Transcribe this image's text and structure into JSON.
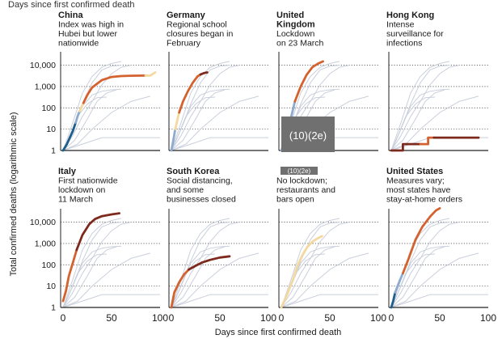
{
  "header": {
    "text": "Days since first confirmed death"
  },
  "ylabel": "Total confirmed deaths (logarithmic scale)",
  "xlabel": "Days since first confirmed death",
  "redactions": {
    "big": "(10)(2e)",
    "small": "(10)(2e)"
  },
  "chart_data": {
    "type": "line",
    "y_scale": "log",
    "ylim": [
      1,
      30000
    ],
    "xlim": [
      0,
      100
    ],
    "y_ticks": [
      {
        "v": 1,
        "label": "1"
      },
      {
        "v": 10,
        "label": "10"
      },
      {
        "v": 100,
        "label": "100"
      },
      {
        "v": 1000,
        "label": "1,000"
      },
      {
        "v": 10000,
        "label": "10,000"
      }
    ],
    "x_ticks": [
      {
        "v": 0,
        "label": "0"
      },
      {
        "v": 50,
        "label": "50"
      },
      {
        "v": 100,
        "label": "100"
      }
    ],
    "colors": {
      "grey": "#c9cfdb",
      "dark_blue": "#1d5e8c",
      "light_blue": "#8eabcf",
      "cream": "#f3d9a0",
      "orange": "#d4622e",
      "dark_red": "#7d2a1c"
    },
    "background_series": [
      [
        [
          0,
          1
        ],
        [
          10,
          20
        ],
        [
          20,
          500
        ],
        [
          30,
          3000
        ],
        [
          40,
          8000
        ],
        [
          50,
          12000
        ],
        [
          60,
          15000
        ]
      ],
      [
        [
          0,
          1
        ],
        [
          10,
          10
        ],
        [
          20,
          150
        ],
        [
          30,
          1500
        ],
        [
          40,
          6000
        ],
        [
          50,
          9000
        ],
        [
          60,
          10000
        ]
      ],
      [
        [
          0,
          1
        ],
        [
          10,
          5
        ],
        [
          20,
          40
        ],
        [
          30,
          200
        ],
        [
          40,
          1200
        ],
        [
          50,
          4000
        ],
        [
          60,
          8000
        ],
        [
          70,
          10000
        ]
      ],
      [
        [
          0,
          1
        ],
        [
          10,
          10
        ],
        [
          20,
          120
        ],
        [
          30,
          400
        ],
        [
          40,
          600
        ],
        [
          50,
          700
        ],
        [
          60,
          750
        ]
      ],
      [
        [
          0,
          1
        ],
        [
          12,
          3
        ],
        [
          25,
          30
        ],
        [
          35,
          200
        ],
        [
          45,
          500
        ],
        [
          55,
          700
        ]
      ],
      [
        [
          0,
          1
        ],
        [
          15,
          2
        ],
        [
          30,
          10
        ],
        [
          50,
          60
        ],
        [
          70,
          200
        ],
        [
          90,
          350
        ]
      ],
      [
        [
          0,
          1
        ],
        [
          5,
          3
        ],
        [
          15,
          40
        ],
        [
          25,
          150
        ],
        [
          35,
          300
        ],
        [
          45,
          320
        ]
      ],
      [
        [
          0,
          1
        ],
        [
          20,
          2
        ],
        [
          40,
          4
        ],
        [
          60,
          4
        ],
        [
          80,
          4
        ],
        [
          100,
          4
        ]
      ]
    ],
    "panels": [
      {
        "title": "China",
        "note": [
          "Index was high in",
          "Hubei but lower",
          "nationwide"
        ],
        "segments": [
          {
            "color": "dark_blue",
            "points": [
              [
                0,
                1
              ],
              [
                4,
                2
              ],
              [
                7,
                4
              ],
              [
                10,
                8
              ],
              [
                13,
                20
              ]
            ]
          },
          {
            "color": "light_blue",
            "points": [
              [
                13,
                20
              ],
              [
                15,
                40
              ],
              [
                17,
                70
              ]
            ]
          },
          {
            "color": "cream",
            "points": [
              [
                17,
                70
              ],
              [
                19,
                110
              ],
              [
                21,
                170
              ]
            ]
          },
          {
            "color": "orange",
            "points": [
              [
                21,
                170
              ],
              [
                25,
                400
              ],
              [
                30,
                900
              ],
              [
                40,
                2000
              ],
              [
                50,
                2800
              ],
              [
                60,
                3100
              ],
              [
                70,
                3200
              ],
              [
                85,
                3250
              ]
            ]
          },
          {
            "color": "cream",
            "points": [
              [
                85,
                3250
              ],
              [
                90,
                3300
              ],
              [
                95,
                4600
              ]
            ]
          }
        ]
      },
      {
        "title": "Germany",
        "note": [
          "Regional school",
          "closures began in",
          "February"
        ],
        "segments": [
          {
            "color": "light_blue",
            "points": [
              [
                0,
                1
              ],
              [
                2,
                3
              ],
              [
                4,
                10
              ]
            ]
          },
          {
            "color": "cream",
            "points": [
              [
                4,
                10
              ],
              [
                6,
                25
              ],
              [
                8,
                60
              ]
            ]
          },
          {
            "color": "orange",
            "points": [
              [
                8,
                60
              ],
              [
                12,
                200
              ],
              [
                17,
                600
              ],
              [
                22,
                1500
              ],
              [
                27,
                3000
              ],
              [
                30,
                3700
              ]
            ]
          },
          {
            "color": "dark_red",
            "points": [
              [
                30,
                3700
              ],
              [
                34,
                4300
              ],
              [
                37,
                4600
              ]
            ]
          }
        ]
      },
      {
        "title": "United Kingdom",
        "note": [
          "Lockdown",
          "on 23 March"
        ],
        "titleLines": [
          "United",
          "Kingdom"
        ],
        "segments": [
          {
            "color": "light_blue",
            "points": [
              [
                0,
                1
              ],
              [
                5,
                5
              ],
              [
                10,
                35
              ],
              [
                14,
                200
              ]
            ]
          },
          {
            "color": "orange",
            "points": [
              [
                14,
                200
              ],
              [
                20,
                1000
              ],
              [
                26,
                3500
              ],
              [
                32,
                8000
              ],
              [
                38,
                12000
              ],
              [
                43,
                15000
              ]
            ]
          }
        ]
      },
      {
        "title": "Hong Kong",
        "note": [
          "Intense",
          "surveillance for",
          "infections"
        ],
        "segments": [
          {
            "color": "dark_red",
            "points": [
              [
                0,
                1
              ],
              [
                12,
                1
              ],
              [
                12,
                2
              ],
              [
                30,
                2
              ]
            ]
          },
          {
            "color": "orange",
            "points": [
              [
                30,
                2
              ],
              [
                38,
                2
              ],
              [
                38,
                4
              ],
              [
                44,
                4
              ],
              [
                44,
                4
              ]
            ]
          },
          {
            "color": "dark_red",
            "points": [
              [
                44,
                4
              ],
              [
                90,
                4
              ]
            ]
          }
        ],
        "step": true
      },
      {
        "title": "Italy",
        "note": [
          "First nationwide",
          "lockdown on",
          "11 March"
        ],
        "segments": [
          {
            "color": "orange",
            "points": [
              [
                0,
                2
              ],
              [
                3,
                6
              ],
              [
                6,
                30
              ],
              [
                10,
                120
              ],
              [
                14,
                500
              ]
            ]
          },
          {
            "color": "dark_red",
            "points": [
              [
                14,
                500
              ],
              [
                20,
                2500
              ],
              [
                27,
                8000
              ],
              [
                33,
                14000
              ],
              [
                40,
                19000
              ],
              [
                50,
                23000
              ],
              [
                58,
                26000
              ]
            ]
          }
        ]
      },
      {
        "title": "South Korea",
        "note": [
          "Social distancing,",
          "and some",
          "businesses closed"
        ],
        "segments": [
          {
            "color": "orange",
            "points": [
              [
                0,
                1
              ],
              [
                3,
                5
              ],
              [
                8,
                15
              ],
              [
                13,
                35
              ],
              [
                18,
                60
              ]
            ]
          },
          {
            "color": "dark_red",
            "points": [
              [
                18,
                60
              ],
              [
                25,
                90
              ],
              [
                32,
                130
              ],
              [
                40,
                170
              ],
              [
                50,
                220
              ],
              [
                60,
                250
              ]
            ]
          }
        ]
      },
      {
        "title": "",
        "note": [
          "No lockdown;",
          "restaurants and",
          "bars open"
        ],
        "segments": [
          {
            "color": "cream",
            "points": [
              [
                0,
                1
              ],
              [
                6,
                4
              ],
              [
                12,
                20
              ],
              [
                17,
                100
              ],
              [
                22,
                300
              ],
              [
                27,
                700
              ],
              [
                32,
                1200
              ],
              [
                37,
                1700
              ],
              [
                42,
                2200
              ]
            ]
          }
        ]
      },
      {
        "title": "United States",
        "note": [
          "Measures vary;",
          "most states have",
          "stay-at-home orders"
        ],
        "segments": [
          {
            "color": "dark_blue",
            "points": [
              [
                0,
                1
              ],
              [
                2,
                2
              ],
              [
                4,
                5
              ]
            ]
          },
          {
            "color": "light_blue",
            "points": [
              [
                4,
                5
              ],
              [
                8,
                15
              ],
              [
                12,
                40
              ]
            ]
          },
          {
            "color": "orange",
            "points": [
              [
                12,
                40
              ],
              [
                18,
                200
              ],
              [
                25,
                1500
              ],
              [
                32,
                6000
              ],
              [
                40,
                18000
              ],
              [
                46,
                35000
              ],
              [
                50,
                45000
              ]
            ]
          }
        ]
      }
    ]
  }
}
